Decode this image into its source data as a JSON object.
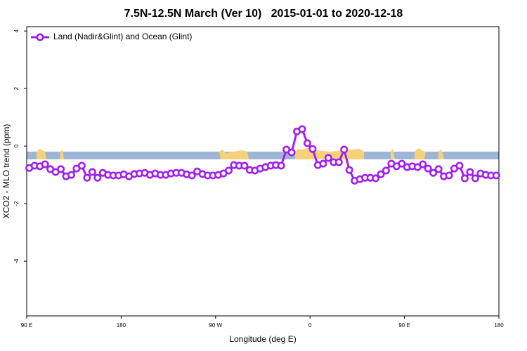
{
  "chart_data": {
    "type": "line",
    "title": "7.5N-12.5N March (Ver 10)   2015-01-01 to 2020-12-18",
    "xlabel": "Longitude (deg E)",
    "ylabel": "XCO2 - MLO trend (ppm)",
    "xlim": [
      90,
      540
    ],
    "ylim": [
      -5.9,
      4.15
    ],
    "xticks": [
      {
        "value": 90,
        "label": "90 E"
      },
      180,
      {
        "value": 270,
        "label": "90 W"
      },
      {
        "value": 360,
        "label": "0"
      },
      {
        "value": 450,
        "label": "90 E"
      },
      {
        "value": 540,
        "label": "180"
      }
    ],
    "yticks": [
      -4,
      -2,
      0,
      2,
      4
    ],
    "legend": "top-left",
    "x": [
      92.5,
      97.5,
      102.5,
      107.5,
      112.5,
      117.5,
      122.5,
      127.5,
      132.5,
      137.5,
      142.5,
      147.5,
      152.5,
      157.5,
      162.5,
      167.5,
      172.5,
      177.5,
      182.5,
      187.5,
      192.5,
      197.5,
      202.5,
      207.5,
      212.5,
      217.5,
      222.5,
      227.5,
      232.5,
      237.5,
      242.5,
      247.5,
      252.5,
      257.5,
      262.5,
      267.5,
      272.5,
      277.5,
      282.5,
      287.5,
      292.5,
      297.5,
      302.5,
      307.5,
      312.5,
      317.5,
      322.5,
      327.5,
      332.5,
      337.5,
      342.5,
      347.5,
      352.5,
      357.5,
      362.5,
      367.5,
      372.5,
      377.5,
      382.5,
      387.5,
      392.5,
      397.5,
      402.5,
      407.5,
      412.5,
      417.5,
      422.5,
      427.5,
      432.5,
      437.5,
      442.5,
      447.5,
      452.5,
      457.5,
      462.5,
      467.5,
      472.5,
      477.5,
      482.5,
      487.5,
      492.5,
      497.5,
      502.5,
      507.5,
      512.5,
      517.5,
      522.5,
      527.5,
      532.5,
      537.5
    ],
    "series": [
      {
        "name": "Land (Nadir&Glint) and Ocean (Glint)",
        "color": "#a020f0",
        "values": [
          -0.76,
          -0.68,
          -0.7,
          -0.63,
          -0.8,
          -0.9,
          -0.8,
          -1.05,
          -1.0,
          -0.78,
          -0.68,
          -1.1,
          -0.9,
          -1.1,
          -0.93,
          -1.0,
          -1.02,
          -1.02,
          -0.98,
          -1.05,
          -0.97,
          -0.95,
          -0.93,
          -1.0,
          -0.95,
          -1.0,
          -1.0,
          -0.95,
          -0.93,
          -0.93,
          -0.98,
          -1.02,
          -0.88,
          -0.97,
          -1.02,
          -1.02,
          -1.0,
          -0.95,
          -0.85,
          -0.66,
          -0.68,
          -0.68,
          -0.83,
          -0.85,
          -0.78,
          -0.73,
          -0.68,
          -0.66,
          -0.68,
          -0.12,
          -0.22,
          0.51,
          0.59,
          0.1,
          -0.1,
          -0.66,
          -0.61,
          -0.41,
          -0.56,
          -0.56,
          -0.12,
          -0.83,
          -1.2,
          -1.15,
          -1.1,
          -1.1,
          -1.12,
          -0.98,
          -0.85,
          -0.61,
          -0.7,
          -0.61,
          -0.73,
          -0.7,
          -0.73,
          -0.63,
          -0.78,
          -0.93,
          -0.8,
          -1.05,
          -1.02,
          -0.78,
          -0.68,
          -1.12,
          -0.9,
          -1.12,
          -0.95,
          -1.0,
          -1.02,
          -1.02
        ]
      }
    ]
  }
}
